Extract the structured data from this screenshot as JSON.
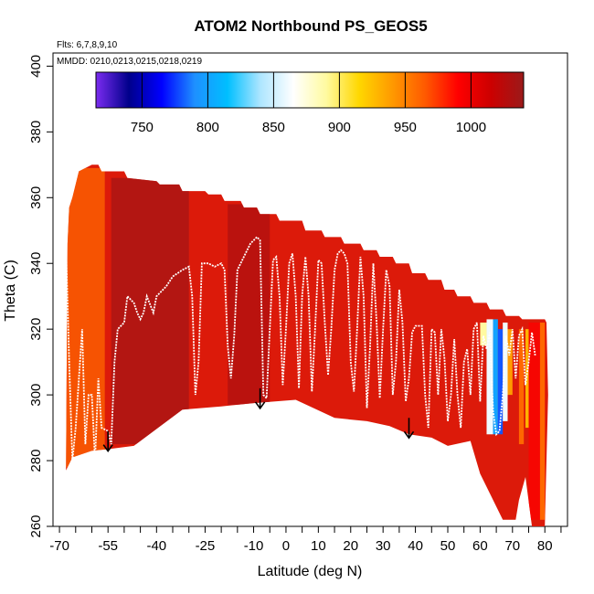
{
  "chart_data": {
    "type": "heatmap",
    "title": "ATOM2 Northbound PS_GEOS5",
    "flights_note": "Flts: 6,7,8,9,10",
    "dates_note": "MMDD: 0210,0213,0215,0218,0219",
    "xlabel": "Latitude (deg N)",
    "ylabel": "Theta (C)",
    "xlim": [
      -72,
      87
    ],
    "ylim": [
      260,
      404
    ],
    "x_ticks": [
      -70,
      -55,
      -40,
      -25,
      -10,
      0,
      10,
      20,
      30,
      40,
      50,
      60,
      70,
      80
    ],
    "x_tick_labels": [
      "-70",
      "-55",
      "-40",
      "-25",
      "-10",
      "0",
      "10",
      "20",
      "30",
      "40",
      "50",
      "60",
      "70",
      "80"
    ],
    "x_minor_ticks": [
      -65,
      -60,
      -50,
      -45,
      -35,
      -30,
      -20,
      -15,
      -5,
      5,
      15,
      25,
      35,
      45,
      55,
      65,
      75,
      85
    ],
    "y_ticks": [
      260,
      280,
      300,
      320,
      340,
      360,
      380,
      400
    ],
    "y_tick_labels": [
      "260",
      "280",
      "300",
      "320",
      "340",
      "360",
      "380",
      "400"
    ],
    "colorbar": {
      "range": [
        715,
        1040
      ],
      "ticks": [
        750,
        800,
        850,
        900,
        950,
        1000
      ],
      "tick_labels": [
        "750",
        "800",
        "850",
        "900",
        "950",
        "1000"
      ],
      "colors": [
        "#7b2cf0",
        "#00008b",
        "#0000ff",
        "#1e90ff",
        "#00bfff",
        "#aee6ff",
        "#ffffff",
        "#fffaa0",
        "#ffd700",
        "#ff9a00",
        "#ff5a00",
        "#ff0000",
        "#cc0000",
        "#9b1a1a"
      ]
    },
    "field_outline": {
      "top": [
        [
          -67.5,
          346
        ],
        [
          -67,
          357
        ],
        [
          -66,
          360
        ],
        [
          -64,
          368
        ],
        [
          -60,
          370
        ],
        [
          -58,
          370
        ],
        [
          -57,
          368
        ],
        [
          -50,
          368
        ],
        [
          -49,
          366
        ],
        [
          -40,
          365
        ],
        [
          -39,
          364
        ],
        [
          -33,
          364
        ],
        [
          -32,
          362
        ],
        [
          -25,
          362
        ],
        [
          -24,
          361
        ],
        [
          -20,
          361
        ],
        [
          -19,
          359
        ],
        [
          -14,
          359
        ],
        [
          -13,
          357
        ],
        [
          -9,
          357
        ],
        [
          -8,
          355
        ],
        [
          -3,
          355
        ],
        [
          -2,
          353
        ],
        [
          5,
          353
        ],
        [
          6,
          350
        ],
        [
          11,
          350
        ],
        [
          12,
          348
        ],
        [
          17,
          348
        ],
        [
          18,
          346
        ],
        [
          23,
          346
        ],
        [
          24,
          344
        ],
        [
          28,
          344
        ],
        [
          29,
          342
        ],
        [
          33,
          342
        ],
        [
          34,
          340
        ],
        [
          38,
          340
        ],
        [
          39,
          337
        ],
        [
          43,
          337
        ],
        [
          44,
          335
        ],
        [
          48,
          335
        ],
        [
          49,
          332
        ],
        [
          52,
          332
        ],
        [
          53,
          330
        ],
        [
          57,
          330
        ],
        [
          58,
          328
        ],
        [
          62,
          328
        ],
        [
          63,
          326
        ],
        [
          67,
          326
        ],
        [
          68,
          324
        ],
        [
          72,
          324
        ],
        [
          73,
          323
        ],
        [
          80,
          323
        ]
      ],
      "bottom": [
        [
          -68,
          277
        ],
        [
          -66,
          281
        ],
        [
          -60,
          283
        ],
        [
          -55,
          283.5
        ],
        [
          -47,
          284.5
        ],
        [
          -32,
          295.5
        ],
        [
          -20,
          296.5
        ],
        [
          -10,
          297.5
        ],
        [
          3,
          298.5
        ],
        [
          15,
          293
        ],
        [
          25,
          292
        ],
        [
          32,
          290.5
        ],
        [
          38,
          288
        ],
        [
          45,
          287
        ],
        [
          50,
          284.5
        ],
        [
          57,
          286
        ],
        [
          60,
          276
        ],
        [
          67,
          262
        ],
        [
          71,
          262
        ],
        [
          72,
          268
        ],
        [
          74,
          275
        ],
        [
          76,
          260
        ],
        [
          80,
          260
        ],
        [
          81,
          300
        ],
        [
          80.5,
          322
        ]
      ],
      "color": "#dc1a0a"
    },
    "regions": [
      {
        "x0": -68,
        "x1": -56,
        "y0": 278,
        "y1": 369,
        "value": 960
      },
      {
        "x0": -54,
        "x1": -30,
        "y0": 285,
        "y1": 366,
        "value": 1035
      },
      {
        "x0": -18,
        "x1": -5,
        "y0": 297,
        "y1": 358,
        "value": 1030
      },
      {
        "x0": 75,
        "x1": 80,
        "y0": 262,
        "y1": 322,
        "value": 990
      }
    ],
    "highlight_cells": [
      {
        "x0": 60,
        "x1": 62,
        "y0": 315,
        "y1": 322,
        "value": 890
      },
      {
        "x0": 62,
        "x1": 64,
        "y0": 288,
        "y1": 323,
        "value": 860
      },
      {
        "x0": 64,
        "x1": 65.5,
        "y0": 288,
        "y1": 323,
        "value": 800
      },
      {
        "x0": 65.5,
        "x1": 67,
        "y0": 288,
        "y1": 320,
        "value": 780
      },
      {
        "x0": 67,
        "x1": 68.5,
        "y0": 292,
        "y1": 322,
        "value": 860
      },
      {
        "x0": 68.5,
        "x1": 70,
        "y0": 300,
        "y1": 320,
        "value": 940
      },
      {
        "x0": 72,
        "x1": 73.5,
        "y0": 285,
        "y1": 320,
        "value": 960
      },
      {
        "x0": 74,
        "x1": 75,
        "y0": 290,
        "y1": 320,
        "value": 930
      },
      {
        "x0": 78.5,
        "x1": 80,
        "y0": 262,
        "y1": 322,
        "value": 960
      }
    ],
    "flight_track": [
      [
        -68,
        345
      ],
      [
        -67,
        310
      ],
      [
        -66,
        280
      ],
      [
        -65,
        290
      ],
      [
        -63,
        320
      ],
      [
        -62,
        285
      ],
      [
        -61,
        300
      ],
      [
        -60,
        300
      ],
      [
        -59,
        280
      ],
      [
        -58,
        305
      ],
      [
        -57,
        290
      ],
      [
        -55,
        289
      ],
      [
        -54,
        285
      ],
      [
        -53,
        310
      ],
      [
        -52,
        320
      ],
      [
        -50,
        322
      ],
      [
        -49,
        330
      ],
      [
        -47,
        328
      ],
      [
        -46,
        325
      ],
      [
        -45,
        323
      ],
      [
        -44,
        325
      ],
      [
        -43,
        330
      ],
      [
        -41,
        325
      ],
      [
        -40,
        330
      ],
      [
        -37,
        333
      ],
      [
        -35,
        336
      ],
      [
        -32,
        338
      ],
      [
        -30,
        339
      ],
      [
        -29,
        330
      ],
      [
        -28,
        300
      ],
      [
        -27,
        310
      ],
      [
        -26,
        340
      ],
      [
        -24,
        340
      ],
      [
        -22,
        339
      ],
      [
        -20,
        340
      ],
      [
        -19,
        338
      ],
      [
        -18,
        315
      ],
      [
        -17,
        305
      ],
      [
        -16,
        318
      ],
      [
        -15,
        338
      ],
      [
        -13,
        342
      ],
      [
        -11,
        346
      ],
      [
        -9,
        348
      ],
      [
        -8,
        347
      ],
      [
        -7,
        300
      ],
      [
        -6,
        299
      ],
      [
        -5,
        320
      ],
      [
        -4,
        341
      ],
      [
        -3,
        342
      ],
      [
        -2,
        330
      ],
      [
        -1,
        303
      ],
      [
        0,
        320
      ],
      [
        1,
        340
      ],
      [
        2,
        343
      ],
      [
        3,
        330
      ],
      [
        4,
        302
      ],
      [
        5,
        330
      ],
      [
        6,
        342
      ],
      [
        7,
        330
      ],
      [
        8,
        301
      ],
      [
        9,
        320
      ],
      [
        10,
        341
      ],
      [
        11,
        340
      ],
      [
        12,
        322
      ],
      [
        13,
        306
      ],
      [
        14,
        320
      ],
      [
        15,
        338
      ],
      [
        16,
        343
      ],
      [
        17,
        344
      ],
      [
        18,
        343
      ],
      [
        19,
        340
      ],
      [
        20,
        310
      ],
      [
        21,
        301
      ],
      [
        22,
        320
      ],
      [
        23,
        342
      ],
      [
        24,
        330
      ],
      [
        25,
        296
      ],
      [
        26,
        315
      ],
      [
        27,
        340
      ],
      [
        28,
        322
      ],
      [
        29,
        299
      ],
      [
        30,
        320
      ],
      [
        31,
        338
      ],
      [
        32,
        333
      ],
      [
        33,
        300
      ],
      [
        34,
        310
      ],
      [
        35,
        332
      ],
      [
        36,
        322
      ],
      [
        37,
        298
      ],
      [
        38,
        305
      ],
      [
        39,
        319
      ],
      [
        40,
        321
      ],
      [
        42,
        321
      ],
      [
        43,
        300
      ],
      [
        44,
        290
      ],
      [
        45,
        320
      ],
      [
        46,
        319
      ],
      [
        47,
        300
      ],
      [
        48,
        320
      ],
      [
        49,
        311
      ],
      [
        50,
        292
      ],
      [
        51,
        300
      ],
      [
        52,
        317
      ],
      [
        53,
        300
      ],
      [
        54,
        290
      ],
      [
        55,
        310
      ],
      [
        56,
        314
      ],
      [
        57,
        300
      ],
      [
        58,
        320
      ],
      [
        59,
        322
      ],
      [
        60,
        298
      ],
      [
        61,
        318
      ],
      [
        62,
        314
      ],
      [
        63,
        319
      ],
      [
        64,
        295
      ],
      [
        65,
        288
      ],
      [
        66,
        289
      ],
      [
        67,
        300
      ],
      [
        68,
        318
      ],
      [
        69,
        312
      ],
      [
        70,
        320
      ],
      [
        71,
        305
      ],
      [
        72,
        318
      ],
      [
        73,
        320
      ],
      [
        74,
        303
      ],
      [
        75,
        310
      ],
      [
        76,
        319
      ],
      [
        77,
        312
      ]
    ],
    "arrows": [
      [
        -55,
        289
      ],
      [
        -8,
        302
      ],
      [
        38,
        293
      ]
    ]
  }
}
